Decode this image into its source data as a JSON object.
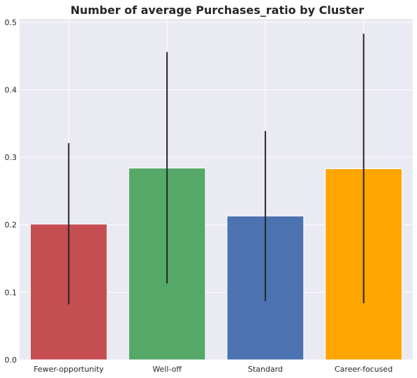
{
  "chart_data": {
    "type": "bar",
    "title": "Number of average Purchases_ratio by Cluster",
    "xlabel": "",
    "ylabel": "",
    "categories": [
      "Fewer-opportunity",
      "Well-off",
      "Standard",
      "Career-focused"
    ],
    "values": [
      0.201,
      0.284,
      0.213,
      0.283
    ],
    "error_low": [
      0.082,
      0.113,
      0.087,
      0.084
    ],
    "error_high": [
      0.321,
      0.456,
      0.339,
      0.483
    ],
    "colors": [
      "#c44e52",
      "#55a868",
      "#4c72b0",
      "#ffa500"
    ],
    "ylim": [
      0,
      0.505
    ],
    "yticks": [
      0.0,
      0.1,
      0.2,
      0.3,
      0.4,
      0.5
    ],
    "ytick_labels": [
      "0.0",
      "0.1",
      "0.2",
      "0.3",
      "0.4",
      "0.5"
    ],
    "grid": true,
    "background_color": "#eaeaf2",
    "errorbar_color": "#262626"
  }
}
